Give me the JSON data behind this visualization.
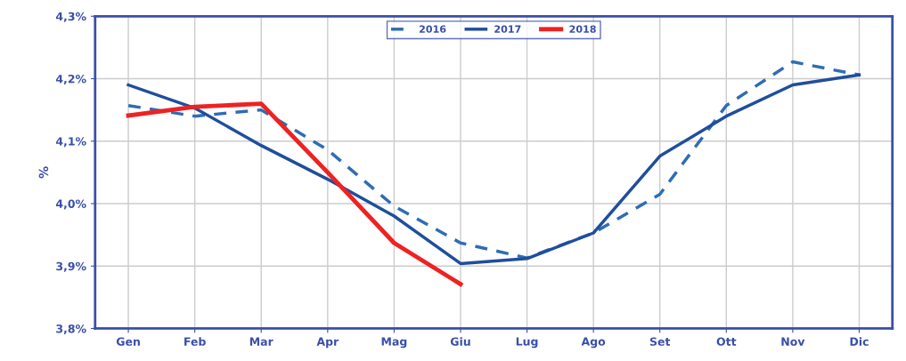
{
  "chart_data": {
    "type": "line",
    "ylabel": "%",
    "categories": [
      "Gen",
      "Feb",
      "Mar",
      "Apr",
      "Mag",
      "Giu",
      "Lug",
      "Ago",
      "Set",
      "Ott",
      "Nov",
      "Dic"
    ],
    "series": [
      {
        "name": "2016",
        "color": "#2e6db4",
        "line_style": "dashed",
        "values": [
          4.157,
          4.14,
          4.15,
          4.086,
          3.996,
          3.937,
          3.913,
          3.953,
          4.015,
          4.157,
          4.227,
          4.206
        ]
      },
      {
        "name": "2017",
        "color": "#1f4e9c",
        "line_style": "solid",
        "values": [
          4.19,
          4.153,
          4.093,
          4.039,
          3.98,
          3.904,
          3.912,
          3.953,
          4.076,
          4.14,
          4.19,
          4.206
        ]
      },
      {
        "name": "2018",
        "color": "#ee2222",
        "line_style": "solid",
        "values": [
          4.141,
          4.155,
          4.16,
          4.05,
          3.937,
          3.871,
          null,
          null,
          null,
          null,
          null,
          null
        ]
      }
    ],
    "ylim": [
      3.8,
      4.3
    ],
    "yticks": [
      {
        "value": 3.8,
        "label": "3,8%"
      },
      {
        "value": 3.9,
        "label": "3,9%"
      },
      {
        "value": 4.0,
        "label": "4,0%"
      },
      {
        "value": 4.1,
        "label": "4,1%"
      },
      {
        "value": 4.2,
        "label": "4,2%"
      },
      {
        "value": 4.3,
        "label": "4,3%"
      }
    ],
    "grid": true,
    "legend": "top",
    "marker": "none"
  }
}
